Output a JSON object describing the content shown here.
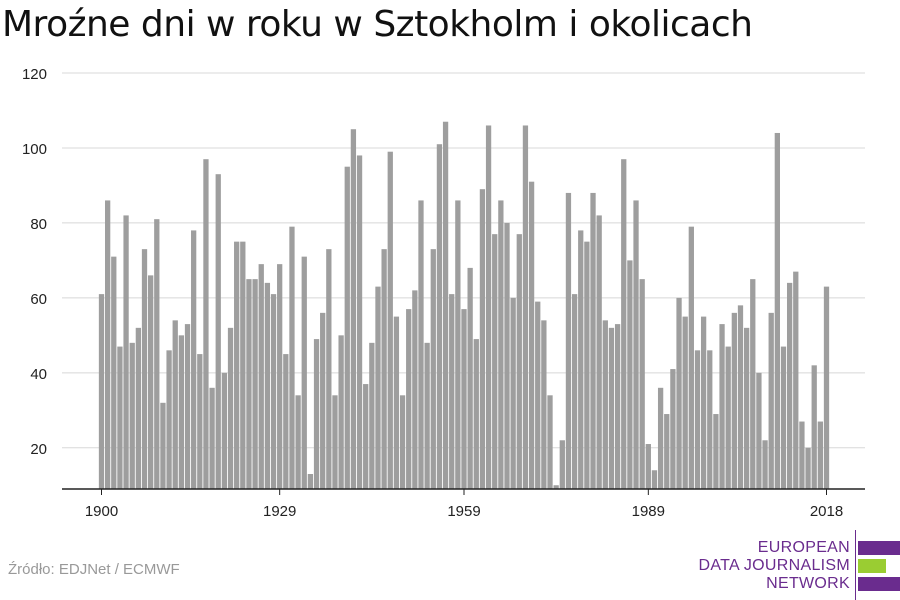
{
  "title": "Mroźne dni w roku w Sztokholm i okolicach",
  "source": "Źródło: EDJNet / ECMWF",
  "logo": {
    "lines": [
      "EUROPEAN",
      "DATA JOURNALISM",
      "NETWORK"
    ],
    "colors": {
      "text": "#6a2c8e",
      "bar_purple": "#6a2c8e",
      "bar_green": "#9acd32"
    }
  },
  "colors": {
    "bar": "#9e9e9e",
    "grid": "#d8d8d8",
    "axis": "#222222",
    "text": "#222222"
  },
  "chart_data": {
    "type": "bar",
    "title": "Mroźne dni w roku w Sztokholm i okolicach",
    "xlabel": "",
    "ylabel": "",
    "x_start": 1900,
    "x_tick_labels": [
      "1900",
      "1929",
      "1959",
      "1989",
      "2018"
    ],
    "y_ticks": [
      20,
      40,
      60,
      80,
      100,
      120
    ],
    "ylim": [
      9,
      120
    ],
    "grid": true,
    "values": [
      61,
      86,
      71,
      47,
      82,
      48,
      52,
      73,
      66,
      81,
      32,
      46,
      54,
      50,
      53,
      78,
      45,
      97,
      36,
      93,
      40,
      52,
      75,
      75,
      65,
      65,
      69,
      64,
      61,
      69,
      45,
      79,
      34,
      71,
      13,
      49,
      56,
      73,
      34,
      50,
      95,
      105,
      98,
      37,
      48,
      63,
      73,
      99,
      55,
      34,
      57,
      62,
      86,
      48,
      73,
      101,
      107,
      61,
      86,
      57,
      68,
      49,
      89,
      106,
      77,
      86,
      80,
      60,
      77,
      106,
      91,
      59,
      54,
      34,
      10,
      22,
      88,
      61,
      78,
      75,
      88,
      82,
      54,
      52,
      53,
      97,
      70,
      86,
      65,
      21,
      14,
      36,
      29,
      41,
      60,
      55,
      79,
      46,
      55,
      46,
      29,
      53,
      47,
      56,
      58,
      52,
      65,
      40,
      22,
      56,
      104,
      47,
      64,
      67,
      27,
      20,
      42,
      27,
      63
    ]
  }
}
